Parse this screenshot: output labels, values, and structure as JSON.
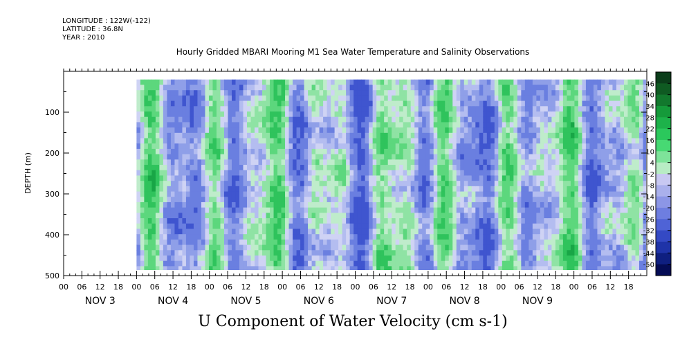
{
  "header": {
    "longitude": "LONGITUDE : 122W(-122)",
    "latitude": "LATITUDE : 36.8N",
    "year": "YEAR : 2010"
  },
  "chart_data": {
    "type": "heatmap",
    "title": "Hourly Gridded MBARI Mooring M1 Sea Water Temperature and Salinity Observations",
    "xlabel": "U Component of Water Velocity (cm s-1)",
    "ylabel": "DEPTH (m)",
    "ylim": [
      500,
      0
    ],
    "yticks": [
      100,
      200,
      300,
      400,
      500
    ],
    "ytick_labels": [
      "100",
      "200",
      "300",
      "400",
      "500"
    ],
    "day_labels": [
      "NOV  3",
      "NOV  4",
      "NOV  5",
      "NOV  6",
      "NOV  7",
      "NOV  8",
      "NOV  9"
    ],
    "hour_tick_labels": [
      "00",
      "06",
      "12",
      "18",
      "00",
      "06",
      "12",
      "18",
      "00",
      "06",
      "12",
      "18",
      "00",
      "06",
      "12",
      "18",
      "00",
      "06",
      "12",
      "18",
      "00",
      "06",
      "12",
      "18",
      "00",
      "06",
      "12",
      "18",
      "00",
      "06",
      "12",
      "18"
    ],
    "x_start_hour": -24,
    "x_end_hour": 168,
    "hour_tick_step": 6,
    "data_x_range_hours": [
      0,
      168
    ],
    "data_depth_range_m": [
      20,
      490
    ],
    "colorbar": {
      "levels": [
        46,
        40,
        34,
        28,
        22,
        16,
        10,
        4,
        -2,
        -8,
        -14,
        -20,
        -26,
        -32,
        -38,
        -44,
        -50
      ],
      "level_labels": [
        "46",
        "40",
        "34",
        "28",
        "22",
        "16",
        "10",
        "4",
        "-2",
        "-8",
        "-14",
        "-20",
        "-26",
        "-32",
        "-38",
        "-44",
        "-50"
      ],
      "colors": [
        "#0b3d1a",
        "#0f5a22",
        "#12782d",
        "#159a3a",
        "#1db24a",
        "#2bc85c",
        "#47d973",
        "#7ee39a",
        "#b8ecc4",
        "#c8c8f2",
        "#aab0ec",
        "#8c96e6",
        "#6e7ee0",
        "#4f63d6",
        "#3449c4",
        "#1f33a8",
        "#0f1f80",
        "#050c55"
      ]
    },
    "bands": [
      {
        "day": "NOV  3",
        "pattern": "mixed",
        "dominant": "green"
      },
      {
        "day": "NOV  4",
        "pattern": "alternating",
        "dominant": "green"
      },
      {
        "day": "NOV  5",
        "pattern": "alternating",
        "dominant": "blue"
      },
      {
        "day": "NOV  6",
        "pattern": "alternating",
        "dominant": "green"
      },
      {
        "day": "NOV  7",
        "pattern": "mixed",
        "dominant": "blue"
      },
      {
        "day": "NOV  8",
        "pattern": "alternating",
        "dominant": "green"
      },
      {
        "day": "NOV  9",
        "pattern": "mixed",
        "dominant": "green"
      }
    ]
  }
}
